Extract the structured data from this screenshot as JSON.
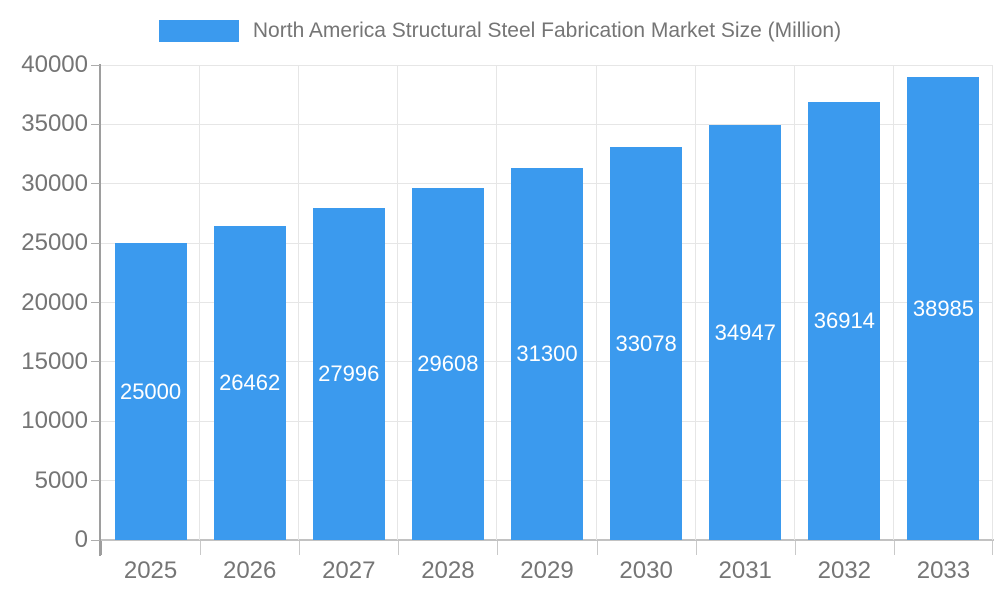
{
  "legend": {
    "label": "North America Structural Steel Fabrication Market Size (Million)"
  },
  "chart_data": {
    "type": "bar",
    "title": "North America Structural Steel Fabrication Market Size (Million)",
    "series_name": "North America Structural Steel Fabrication Market Size (Million)",
    "categories": [
      "2025",
      "2026",
      "2027",
      "2028",
      "2029",
      "2030",
      "2031",
      "2032",
      "2033"
    ],
    "values": [
      25000,
      26462,
      27996,
      29608,
      31300,
      33078,
      34947,
      36914,
      38985
    ],
    "xlabel": "",
    "ylabel": "",
    "ylim": [
      0,
      40000
    ],
    "ytick_interval": 5000,
    "ytick_labels": [
      "0",
      "5000",
      "10000",
      "15000",
      "20000",
      "25000",
      "30000",
      "35000",
      "40000"
    ],
    "grid": true,
    "legend_position": "top-center",
    "value_labels_position": "inside-center",
    "colors": {
      "bar": "#3b9aee",
      "bar_label_text": "#ffffff",
      "gridline": "#e6e6e6",
      "y_axis_line": "#9e9e9e",
      "x_axis_line": "#c2c2c2",
      "axis_text": "#757575",
      "legend_text": "#757575"
    }
  }
}
